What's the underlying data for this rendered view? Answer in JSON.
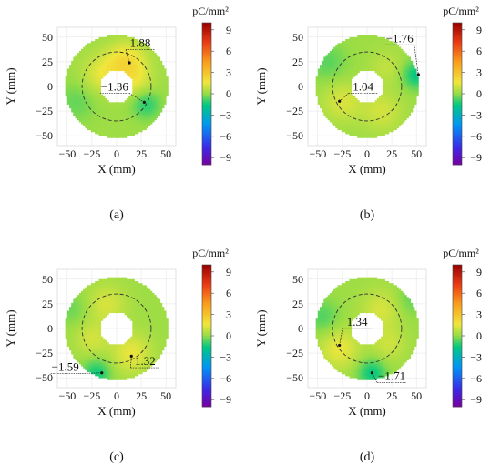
{
  "chart_data": [
    {
      "type": "heatmap",
      "panel_label": "(a)",
      "xlabel": "X (mm)",
      "ylabel": "Y (mm)",
      "xlim": [
        -60,
        60
      ],
      "ylim": [
        -60,
        60
      ],
      "x_ticks": [
        "−50",
        "−25",
        "0",
        "25",
        "50"
      ],
      "y_ticks": [
        "50",
        "25",
        "0",
        "−25",
        "−50"
      ],
      "colorbar_unit": "pC/mm²",
      "colorbar_range": [
        -10,
        10
      ],
      "colorbar_ticks": [
        "9",
        "6",
        "3",
        "0",
        "−3",
        "−6",
        "−9"
      ],
      "ring_inner_radius": 17,
      "ring_outer_radius": 52,
      "dashed_circle_radius": 35,
      "annotations": [
        {
          "text": "1.88",
          "point": [
            13,
            24
          ],
          "label_at": [
            24,
            40
          ]
        },
        {
          "text": "−1.36",
          "point": [
            28,
            -16
          ],
          "label_at": [
            -2,
            -4
          ]
        }
      ],
      "hotspots": [
        {
          "center": [
            10,
            25
          ],
          "value": 1.88,
          "spread": 14
        },
        {
          "center": [
            -15,
            12
          ],
          "value": 1.2,
          "spread": 14
        },
        {
          "center": [
            20,
            5
          ],
          "value": 0.9,
          "spread": 12
        },
        {
          "center": [
            30,
            -18
          ],
          "value": -1.36,
          "spread": 10
        },
        {
          "center": [
            -40,
            -15
          ],
          "value": -0.7,
          "spread": 14
        }
      ]
    },
    {
      "type": "heatmap",
      "panel_label": "(b)",
      "xlabel": "X (mm)",
      "ylabel": "Y (mm)",
      "xlim": [
        -60,
        60
      ],
      "ylim": [
        -60,
        60
      ],
      "x_ticks": [
        "−50",
        "−25",
        "0",
        "25",
        "50"
      ],
      "y_ticks": [
        "50",
        "25",
        "0",
        "−25",
        "−50"
      ],
      "colorbar_unit": "pC/mm²",
      "colorbar_range": [
        -10,
        10
      ],
      "colorbar_ticks": [
        "9",
        "6",
        "3",
        "0",
        "−3",
        "−6",
        "−9"
      ],
      "ring_inner_radius": 17,
      "ring_outer_radius": 52,
      "dashed_circle_radius": 35,
      "annotations": [
        {
          "text": "−1.76",
          "point": [
            52,
            12
          ],
          "label_at": [
            33,
            45
          ]
        },
        {
          "text": "1.04",
          "point": [
            -28,
            -15
          ],
          "label_at": [
            -4,
            -4
          ]
        }
      ],
      "hotspots": [
        {
          "center": [
            -25,
            -15
          ],
          "value": 1.04,
          "spread": 14
        },
        {
          "center": [
            15,
            -25
          ],
          "value": 0.9,
          "spread": 14
        },
        {
          "center": [
            20,
            20
          ],
          "value": 0.6,
          "spread": 12
        },
        {
          "center": [
            50,
            12
          ],
          "value": -1.76,
          "spread": 10
        },
        {
          "center": [
            -40,
            25
          ],
          "value": -0.8,
          "spread": 14
        }
      ]
    },
    {
      "type": "heatmap",
      "panel_label": "(c)",
      "xlabel": "X (mm)",
      "ylabel": "Y (mm)",
      "xlim": [
        -60,
        60
      ],
      "ylim": [
        -60,
        60
      ],
      "x_ticks": [
        "−50",
        "−25",
        "0",
        "25",
        "50"
      ],
      "y_ticks": [
        "50",
        "25",
        "0",
        "−25",
        "−50"
      ],
      "colorbar_unit": "pC/mm²",
      "colorbar_range": [
        -10,
        10
      ],
      "colorbar_ticks": [
        "9",
        "6",
        "3",
        "0",
        "−3",
        "−6",
        "−9"
      ],
      "ring_inner_radius": 17,
      "ring_outer_radius": 52,
      "dashed_circle_radius": 35,
      "annotations": [
        {
          "text": "−1.59",
          "point": [
            -15,
            -45
          ],
          "label_at": [
            -52,
            -43
          ]
        },
        {
          "text": "1.32",
          "point": [
            15,
            -28
          ],
          "label_at": [
            29,
            -37
          ]
        }
      ],
      "hotspots": [
        {
          "center": [
            15,
            -25
          ],
          "value": 1.32,
          "spread": 14
        },
        {
          "center": [
            -10,
            25
          ],
          "value": 1.0,
          "spread": 14
        },
        {
          "center": [
            -25,
            -10
          ],
          "value": 0.9,
          "spread": 12
        },
        {
          "center": [
            -20,
            -45
          ],
          "value": -1.59,
          "spread": 10
        },
        {
          "center": [
            -45,
            20
          ],
          "value": -0.6,
          "spread": 12
        }
      ]
    },
    {
      "type": "heatmap",
      "panel_label": "(d)",
      "xlabel": "X (mm)",
      "ylabel": "Y (mm)",
      "xlim": [
        -60,
        60
      ],
      "ylim": [
        -60,
        60
      ],
      "x_ticks": [
        "−50",
        "−25",
        "0",
        "25",
        "50"
      ],
      "y_ticks": [
        "50",
        "25",
        "0",
        "−25",
        "−50"
      ],
      "colorbar_unit": "pC/mm²",
      "colorbar_range": [
        -10,
        10
      ],
      "colorbar_ticks": [
        "9",
        "6",
        "3",
        "0",
        "−3",
        "−6",
        "−9"
      ],
      "ring_inner_radius": 17,
      "ring_outer_radius": 52,
      "dashed_circle_radius": 35,
      "annotations": [
        {
          "text": "1.34",
          "point": [
            -28,
            -17
          ],
          "label_at": [
            -10,
            3
          ]
        },
        {
          "text": "−1.71",
          "point": [
            5,
            -45
          ],
          "label_at": [
            25,
            -52
          ]
        }
      ],
      "hotspots": [
        {
          "center": [
            -28,
            -20
          ],
          "value": 1.34,
          "spread": 14
        },
        {
          "center": [
            15,
            20
          ],
          "value": 1.0,
          "spread": 14
        },
        {
          "center": [
            22,
            -15
          ],
          "value": 0.8,
          "spread": 12
        },
        {
          "center": [
            5,
            -45
          ],
          "value": -1.71,
          "spread": 10
        },
        {
          "center": [
            -45,
            12
          ],
          "value": -0.9,
          "spread": 12
        },
        {
          "center": [
            45,
            30
          ],
          "value": -0.7,
          "spread": 12
        }
      ]
    }
  ]
}
